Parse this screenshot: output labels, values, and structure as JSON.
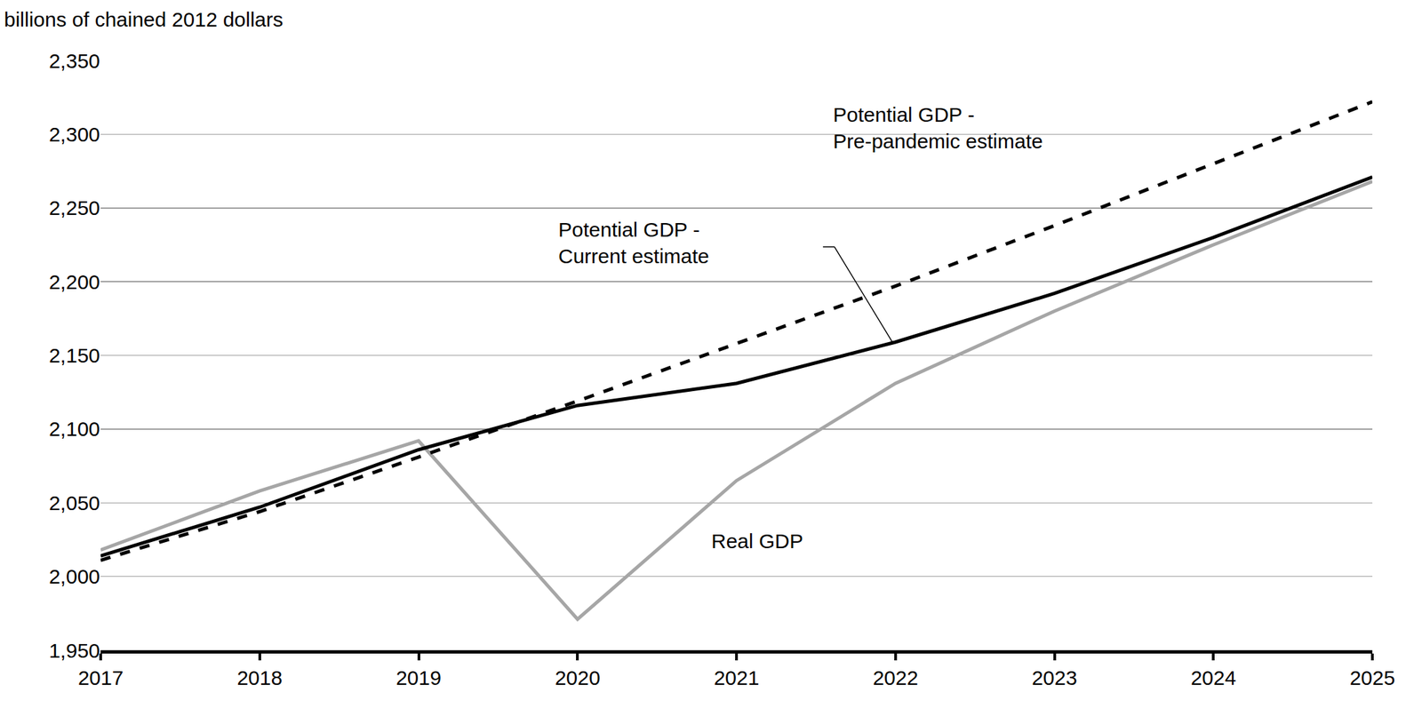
{
  "chart_data": {
    "type": "line",
    "y_label": "billions of chained 2012 dollars",
    "x": [
      2017,
      2018,
      2019,
      2020,
      2021,
      2022,
      2023,
      2024,
      2025
    ],
    "series": [
      {
        "name": "Real GDP",
        "color": "#a6a6a6",
        "line_style": "solid",
        "values": [
          2018,
          2058,
          2092,
          1971,
          2065,
          2131,
          2180,
          2225,
          2268
        ]
      },
      {
        "name": "Potential GDP -\nCurrent estimate",
        "color": "#000000",
        "line_style": "solid",
        "values": [
          2014,
          2047,
          2086,
          2116,
          2131,
          2159,
          2192,
          2230,
          2271
        ]
      },
      {
        "name": "Potential GDP -\nPre-pandemic estimate",
        "color": "#000000",
        "line_style": "dash",
        "values": [
          2011,
          2044,
          2081,
          2119,
          2158,
          2197,
          2238,
          2280,
          2322
        ]
      }
    ],
    "xlim": [
      2017,
      2025
    ],
    "xticks": [
      2017,
      2018,
      2019,
      2020,
      2021,
      2022,
      2023,
      2024,
      2025
    ],
    "ylim": [
      1950,
      2350
    ],
    "yticks": [
      {
        "value": 1950,
        "label": "1,950"
      },
      {
        "value": 2000,
        "label": "2,000"
      },
      {
        "value": 2050,
        "label": "2,050"
      },
      {
        "value": 2100,
        "label": "2,100"
      },
      {
        "value": 2150,
        "label": "2,150"
      },
      {
        "value": 2200,
        "label": "2,200"
      },
      {
        "value": 2250,
        "label": "2,250"
      },
      {
        "value": 2300,
        "label": "2,300"
      },
      {
        "value": 2350,
        "label": "2,350"
      }
    ],
    "grid": true
  }
}
